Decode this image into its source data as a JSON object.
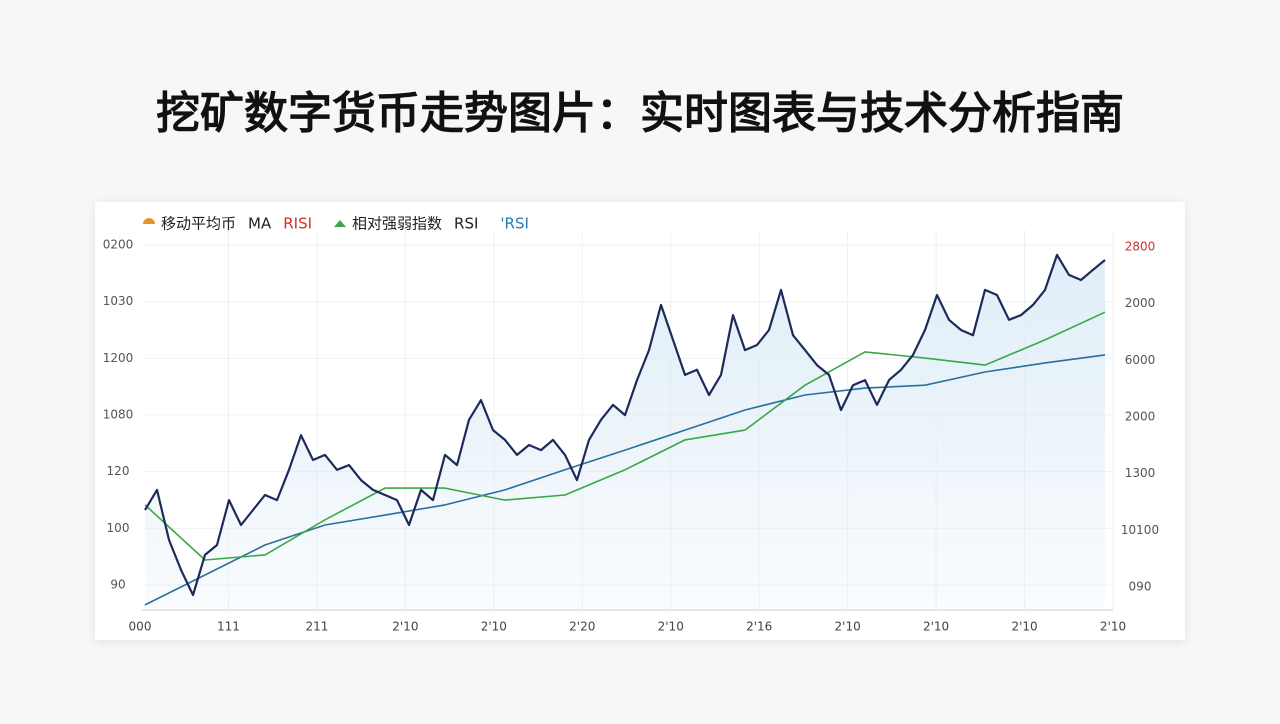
{
  "chart_data": {
    "type": "line",
    "title": "挖矿数字货币走势图片：实时图表与技术分析指南",
    "legend": [
      {
        "text": "移动平均币",
        "color": "#222222",
        "marker_color": "#e8922e"
      },
      {
        "text": "MA",
        "color": "#222222"
      },
      {
        "text": "RISI",
        "color": "#d0312d"
      },
      {
        "text": "相对强弱指数",
        "color": "#222222",
        "marker_color": "#3aa845"
      },
      {
        "text": "RSI",
        "color": "#222222"
      },
      {
        "text": "'RSI",
        "color": "#2a7ab8"
      }
    ],
    "y_axis_labels": [
      "0200",
      "1030",
      "1200",
      "1080",
      "120",
      "100",
      "90"
    ],
    "y2_axis_labels": [
      {
        "text": "2800",
        "color": "#d0312d"
      },
      {
        "text": "2000",
        "color": "#555555"
      },
      {
        "text": "6000",
        "color": "#555555"
      },
      {
        "text": "2000",
        "color": "#555555"
      },
      {
        "text": "1300",
        "color": "#555555"
      },
      {
        "text": "10100",
        "color": "#555555"
      },
      {
        "text": "090",
        "color": "#555555"
      }
    ],
    "x_axis_labels": [
      "000",
      "111",
      "211",
      "2'10",
      "2'10",
      "2'20",
      "2'10",
      "2'16",
      "2'10",
      "2'10",
      "2'10",
      "2'10"
    ],
    "ylim": [
      0,
      100
    ],
    "grid": true,
    "series": [
      {
        "color": "#1d2b5a",
        "area_color": "#dcebf6",
        "values": [
          27.4,
          32.9,
          19.2,
          11.0,
          4.1,
          15.1,
          17.8,
          30.1,
          23.3,
          27.4,
          31.5,
          30.1,
          38.4,
          47.9,
          41.1,
          42.5,
          38.4,
          39.7,
          35.6,
          32.9,
          31.5,
          30.1,
          23.3,
          32.9,
          30.1,
          42.5,
          39.7,
          52.1,
          57.5,
          49.3,
          46.6,
          42.5,
          45.2,
          43.8,
          46.6,
          42.5,
          35.6,
          46.6,
          52.1,
          56.2,
          53.4,
          63.0,
          71.2,
          83.6,
          74.0,
          64.4,
          65.8,
          58.9,
          64.4,
          80.8,
          71.2,
          72.6,
          76.7,
          87.7,
          75.3,
          71.2,
          67.1,
          64.4,
          54.8,
          61.6,
          63.0,
          56.2,
          63.0,
          65.8,
          69.9,
          76.7,
          86.3,
          79.5,
          76.7,
          75.3,
          87.7,
          86.3,
          79.5,
          80.8,
          83.6,
          87.7,
          97.3,
          91.8,
          90.4,
          93.2,
          95.9
        ]
      },
      {
        "color": "#3aa845",
        "values": [
          28.8,
          13.7,
          15.1,
          24.7,
          33.4,
          33.4,
          30.1,
          31.5,
          38.4,
          46.6,
          49.3,
          61.6,
          70.7,
          69.0,
          67.1,
          74.0,
          81.6
        ]
      },
      {
        "color": "#2a6f9e",
        "values": [
          1.4,
          9.6,
          17.8,
          23.3,
          26.0,
          28.8,
          32.9,
          38.4,
          43.8,
          49.3,
          54.8,
          58.9,
          60.8,
          61.6,
          65.2,
          67.7,
          69.9
        ]
      }
    ]
  }
}
